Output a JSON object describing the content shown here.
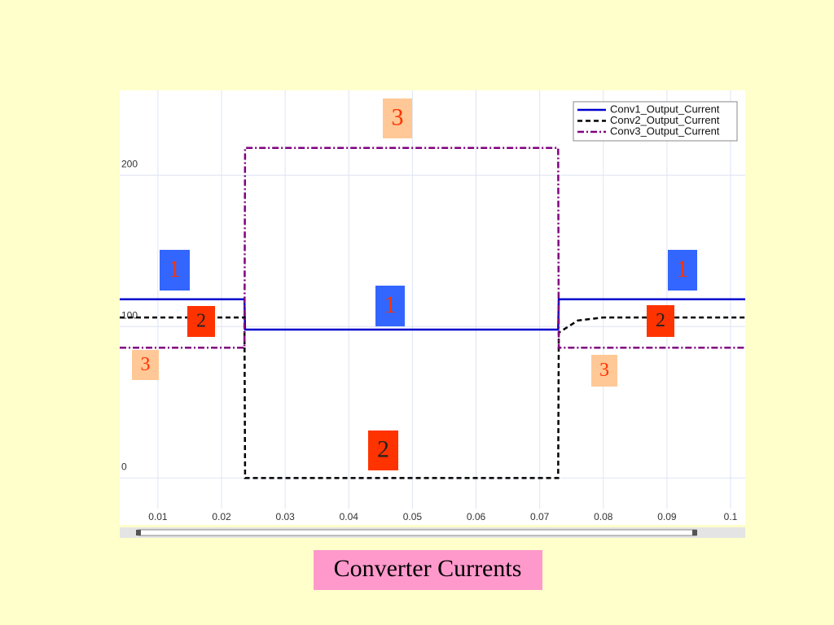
{
  "chart_data": {
    "type": "line",
    "x": [
      0.004,
      0.0236,
      0.0237,
      0.0729,
      0.073,
      0.076,
      0.08,
      0.1023
    ],
    "series": [
      {
        "name": "Conv1_Output_Current",
        "color": "#0000cc",
        "dash": "solid",
        "values": [
          118,
          118,
          98,
          98,
          118,
          118,
          118,
          118
        ]
      },
      {
        "name": "Conv2_Output_Current",
        "color": "#000000",
        "dash": "dashed",
        "values": [
          106,
          106,
          0,
          0,
          96,
          104,
          106,
          106
        ]
      },
      {
        "name": "Conv3_Output_Current",
        "color": "#800080",
        "dash": "dashdot",
        "values": [
          86,
          86,
          218,
          218,
          86,
          86,
          86,
          86
        ]
      }
    ],
    "xlim": [
      0.004,
      0.1023
    ],
    "ylim": [
      -31,
      256
    ],
    "xticks": [
      0.01,
      0.02,
      0.03,
      0.04,
      0.05,
      0.06,
      0.07,
      0.08,
      0.09,
      0.1
    ],
    "yticks": [
      0,
      100,
      200
    ],
    "grid": true,
    "legend": "top-right",
    "annotations": [
      {
        "text": "3",
        "color": "#ffc896",
        "text_color": "#ff3300"
      },
      {
        "text": "1",
        "color": "#3366ff",
        "text_color": "#ff3300"
      },
      {
        "text": "2",
        "color": "#ff3300",
        "text_color": "#222222"
      },
      {
        "text": "3",
        "color": "#ffc896",
        "text_color": "#ff3300"
      },
      {
        "text": "1",
        "color": "#3366ff",
        "text_color": "#ff3300"
      },
      {
        "text": "2",
        "color": "#ff3300",
        "text_color": "#222222"
      },
      {
        "text": "1",
        "color": "#3366ff",
        "text_color": "#ff3300"
      },
      {
        "text": "2",
        "color": "#ff3300",
        "text_color": "#222222"
      },
      {
        "text": "3",
        "color": "#ffc896",
        "text_color": "#ff3300"
      }
    ],
    "caption": "Converter Currents"
  }
}
